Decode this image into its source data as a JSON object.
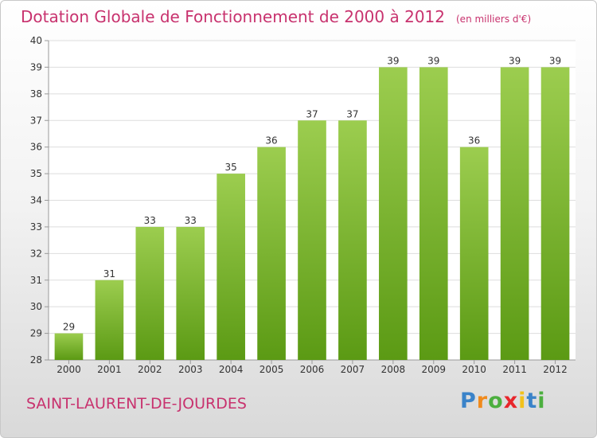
{
  "header": {
    "title": "Dotation Globale de Fonctionnement de 2000 à 2012",
    "subtitle": "(en milliers d'€)"
  },
  "commune": "SAINT-LAURENT-DE-JOURDES",
  "logo_text": "Proxiti",
  "colors": {
    "title": "#c8326e",
    "bar_top": "#9ccd4f",
    "bar_bottom": "#5b9a14",
    "grid": "#dddddd"
  },
  "chart_data": {
    "type": "bar",
    "categories": [
      "2000",
      "2001",
      "2002",
      "2003",
      "2004",
      "2005",
      "2006",
      "2007",
      "2008",
      "2009",
      "2010",
      "2011",
      "2012"
    ],
    "values": [
      29,
      31,
      33,
      33,
      35,
      36,
      37,
      37,
      39,
      39,
      36,
      39,
      39
    ],
    "title": "Dotation Globale de Fonctionnement de 2000 à 2012",
    "subtitle": "(en milliers d'€)",
    "xlabel": "",
    "ylabel": "",
    "ylim": [
      28,
      40
    ],
    "yticks": [
      28,
      29,
      30,
      31,
      32,
      33,
      34,
      35,
      36,
      37,
      38,
      39,
      40
    ],
    "grid": true,
    "data_labels": true
  }
}
